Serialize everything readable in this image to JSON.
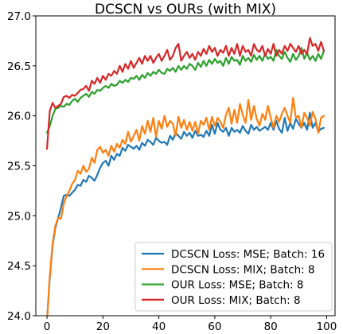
{
  "chart_data": {
    "type": "line",
    "title": "DCSCN vs OURs (with MIX)",
    "xlabel": "",
    "ylabel": "",
    "xlim": [
      -4,
      103
    ],
    "ylim": [
      24.0,
      27.0
    ],
    "xticks": [
      0,
      20,
      40,
      60,
      80,
      100
    ],
    "yticks": [
      24.0,
      24.5,
      25.0,
      25.5,
      26.0,
      26.5,
      27.0
    ],
    "xtick_labels": [
      "0",
      "20",
      "40",
      "60",
      "80",
      "100"
    ],
    "ytick_labels": [
      "24.0",
      "24.5",
      "25.0",
      "25.5",
      "26.0",
      "26.5",
      "27.0"
    ],
    "grid": false,
    "legend_position": "lower-right",
    "x": [
      0,
      1,
      2,
      3,
      4,
      5,
      6,
      7,
      8,
      9,
      10,
      11,
      12,
      13,
      14,
      15,
      16,
      17,
      18,
      19,
      20,
      21,
      22,
      23,
      24,
      25,
      26,
      27,
      28,
      29,
      30,
      31,
      32,
      33,
      34,
      35,
      36,
      37,
      38,
      39,
      40,
      41,
      42,
      43,
      44,
      45,
      46,
      47,
      48,
      49,
      50,
      51,
      52,
      53,
      54,
      55,
      56,
      57,
      58,
      59,
      60,
      61,
      62,
      63,
      64,
      65,
      66,
      67,
      68,
      69,
      70,
      71,
      72,
      73,
      74,
      75,
      76,
      77,
      78,
      79,
      80,
      81,
      82,
      83,
      84,
      85,
      86,
      87,
      88,
      89,
      90,
      91,
      92,
      93,
      94,
      95,
      96,
      97,
      98,
      99
    ],
    "series": [
      {
        "name": "DCSCN Loss: MSE; Batch: 16",
        "color": "#1f77b4",
        "values": [
          23.95,
          24.38,
          24.7,
          24.88,
          24.98,
          25.08,
          25.2,
          25.21,
          25.2,
          25.23,
          25.26,
          25.31,
          25.3,
          25.36,
          25.34,
          25.4,
          25.38,
          25.35,
          25.41,
          25.48,
          25.53,
          25.55,
          25.5,
          25.6,
          25.56,
          25.62,
          25.6,
          25.68,
          25.65,
          25.71,
          25.69,
          25.67,
          25.7,
          25.66,
          25.73,
          25.7,
          25.76,
          25.74,
          25.71,
          25.78,
          25.75,
          25.73,
          25.74,
          25.71,
          25.8,
          25.76,
          25.83,
          25.8,
          25.77,
          25.84,
          25.8,
          25.83,
          25.78,
          25.85,
          25.8,
          25.81,
          25.79,
          25.85,
          25.8,
          25.91,
          25.82,
          25.93,
          25.86,
          25.84,
          25.88,
          25.8,
          25.88,
          25.84,
          25.86,
          25.83,
          25.9,
          25.85,
          25.82,
          25.91,
          25.86,
          25.89,
          25.85,
          25.87,
          25.89,
          25.86,
          25.93,
          25.86,
          25.95,
          25.87,
          25.83,
          25.98,
          25.85,
          25.93,
          25.87,
          25.97,
          25.92,
          25.88,
          25.93,
          25.86,
          26.03,
          25.88,
          25.93,
          25.84,
          25.87,
          25.88
        ]
      },
      {
        "name": "DCSCN Loss: MIX; Batch: 8",
        "color": "#ff7f0e",
        "values": [
          23.95,
          24.4,
          24.72,
          24.9,
          24.98,
          24.97,
          25.12,
          25.2,
          25.25,
          25.32,
          25.36,
          25.45,
          25.42,
          25.5,
          25.44,
          25.47,
          25.58,
          25.53,
          25.66,
          25.69,
          25.63,
          25.66,
          25.6,
          25.7,
          25.64,
          25.72,
          25.68,
          25.76,
          25.72,
          25.84,
          25.74,
          25.8,
          25.86,
          25.75,
          25.9,
          25.82,
          25.95,
          25.84,
          25.98,
          25.79,
          25.95,
          25.87,
          26.0,
          25.89,
          25.95,
          25.92,
          25.8,
          25.99,
          25.88,
          25.96,
          25.86,
          25.94,
          25.85,
          25.94,
          25.82,
          25.95,
          25.91,
          25.98,
          25.86,
          25.99,
          25.9,
          25.98,
          25.94,
          25.88,
          26.01,
          26.08,
          25.92,
          26.06,
          25.93,
          26.12,
          26.01,
          25.93,
          26.16,
          25.96,
          26.1,
          25.97,
          25.9,
          26.02,
          25.96,
          26.1,
          25.98,
          25.88,
          26.0,
          25.94,
          26.02,
          26.08,
          26.0,
          25.93,
          26.18,
          25.98,
          26.0,
          25.88,
          26.03,
          25.98,
          25.9,
          26.04,
          25.97,
          25.83,
          25.98,
          26.0
        ]
      },
      {
        "name": "OUR Loss: MSE; Batch: 8",
        "color": "#2ca02c",
        "values": [
          25.83,
          25.9,
          26.0,
          26.07,
          26.08,
          26.1,
          26.09,
          26.12,
          26.11,
          26.15,
          26.17,
          26.14,
          26.18,
          26.2,
          26.22,
          26.19,
          26.24,
          26.22,
          26.26,
          26.25,
          26.28,
          26.3,
          26.28,
          26.32,
          26.3,
          26.31,
          26.35,
          26.33,
          26.36,
          26.34,
          26.38,
          26.37,
          26.4,
          26.36,
          26.41,
          26.38,
          26.43,
          26.4,
          26.44,
          26.42,
          26.46,
          26.43,
          26.42,
          26.47,
          26.45,
          26.48,
          26.44,
          26.5,
          26.46,
          26.5,
          26.47,
          26.52,
          26.5,
          26.46,
          26.53,
          26.49,
          26.55,
          26.5,
          26.56,
          26.52,
          26.57,
          26.53,
          26.55,
          26.5,
          26.58,
          26.52,
          26.59,
          26.55,
          26.56,
          26.51,
          26.6,
          26.55,
          26.58,
          26.54,
          26.61,
          26.56,
          26.6,
          26.55,
          26.62,
          26.57,
          26.59,
          26.55,
          26.66,
          26.6,
          26.57,
          26.64,
          26.58,
          26.54,
          26.62,
          26.56,
          26.6,
          26.68,
          26.57,
          26.63,
          26.56,
          26.6,
          26.55,
          26.62,
          26.57,
          26.65
        ]
      },
      {
        "name": "OUR Loss: MIX; Batch: 8",
        "color": "#d62728",
        "values": [
          25.67,
          26.05,
          26.13,
          26.08,
          26.1,
          26.12,
          26.19,
          26.2,
          26.18,
          26.21,
          26.2,
          26.23,
          26.26,
          26.27,
          26.3,
          26.25,
          26.35,
          26.32,
          26.38,
          26.33,
          26.4,
          26.36,
          26.42,
          26.4,
          26.45,
          26.42,
          26.5,
          26.44,
          26.52,
          26.47,
          26.55,
          26.48,
          26.53,
          26.58,
          26.52,
          26.6,
          26.55,
          26.6,
          26.53,
          26.58,
          26.62,
          26.55,
          26.6,
          26.66,
          26.56,
          26.6,
          26.68,
          26.72,
          26.55,
          26.6,
          26.64,
          26.58,
          26.62,
          26.56,
          26.64,
          26.6,
          26.67,
          26.62,
          26.7,
          26.64,
          26.68,
          26.6,
          26.66,
          26.63,
          26.7,
          26.6,
          26.68,
          26.62,
          26.72,
          26.6,
          26.7,
          26.64,
          26.66,
          26.6,
          26.72,
          26.66,
          26.64,
          26.7,
          26.6,
          26.67,
          26.62,
          26.72,
          26.6,
          26.66,
          26.62,
          26.7,
          26.65,
          26.72,
          26.68,
          26.64,
          26.7,
          26.62,
          26.66,
          26.62,
          26.78,
          26.7,
          26.72,
          26.65,
          26.74,
          26.65
        ]
      }
    ]
  }
}
